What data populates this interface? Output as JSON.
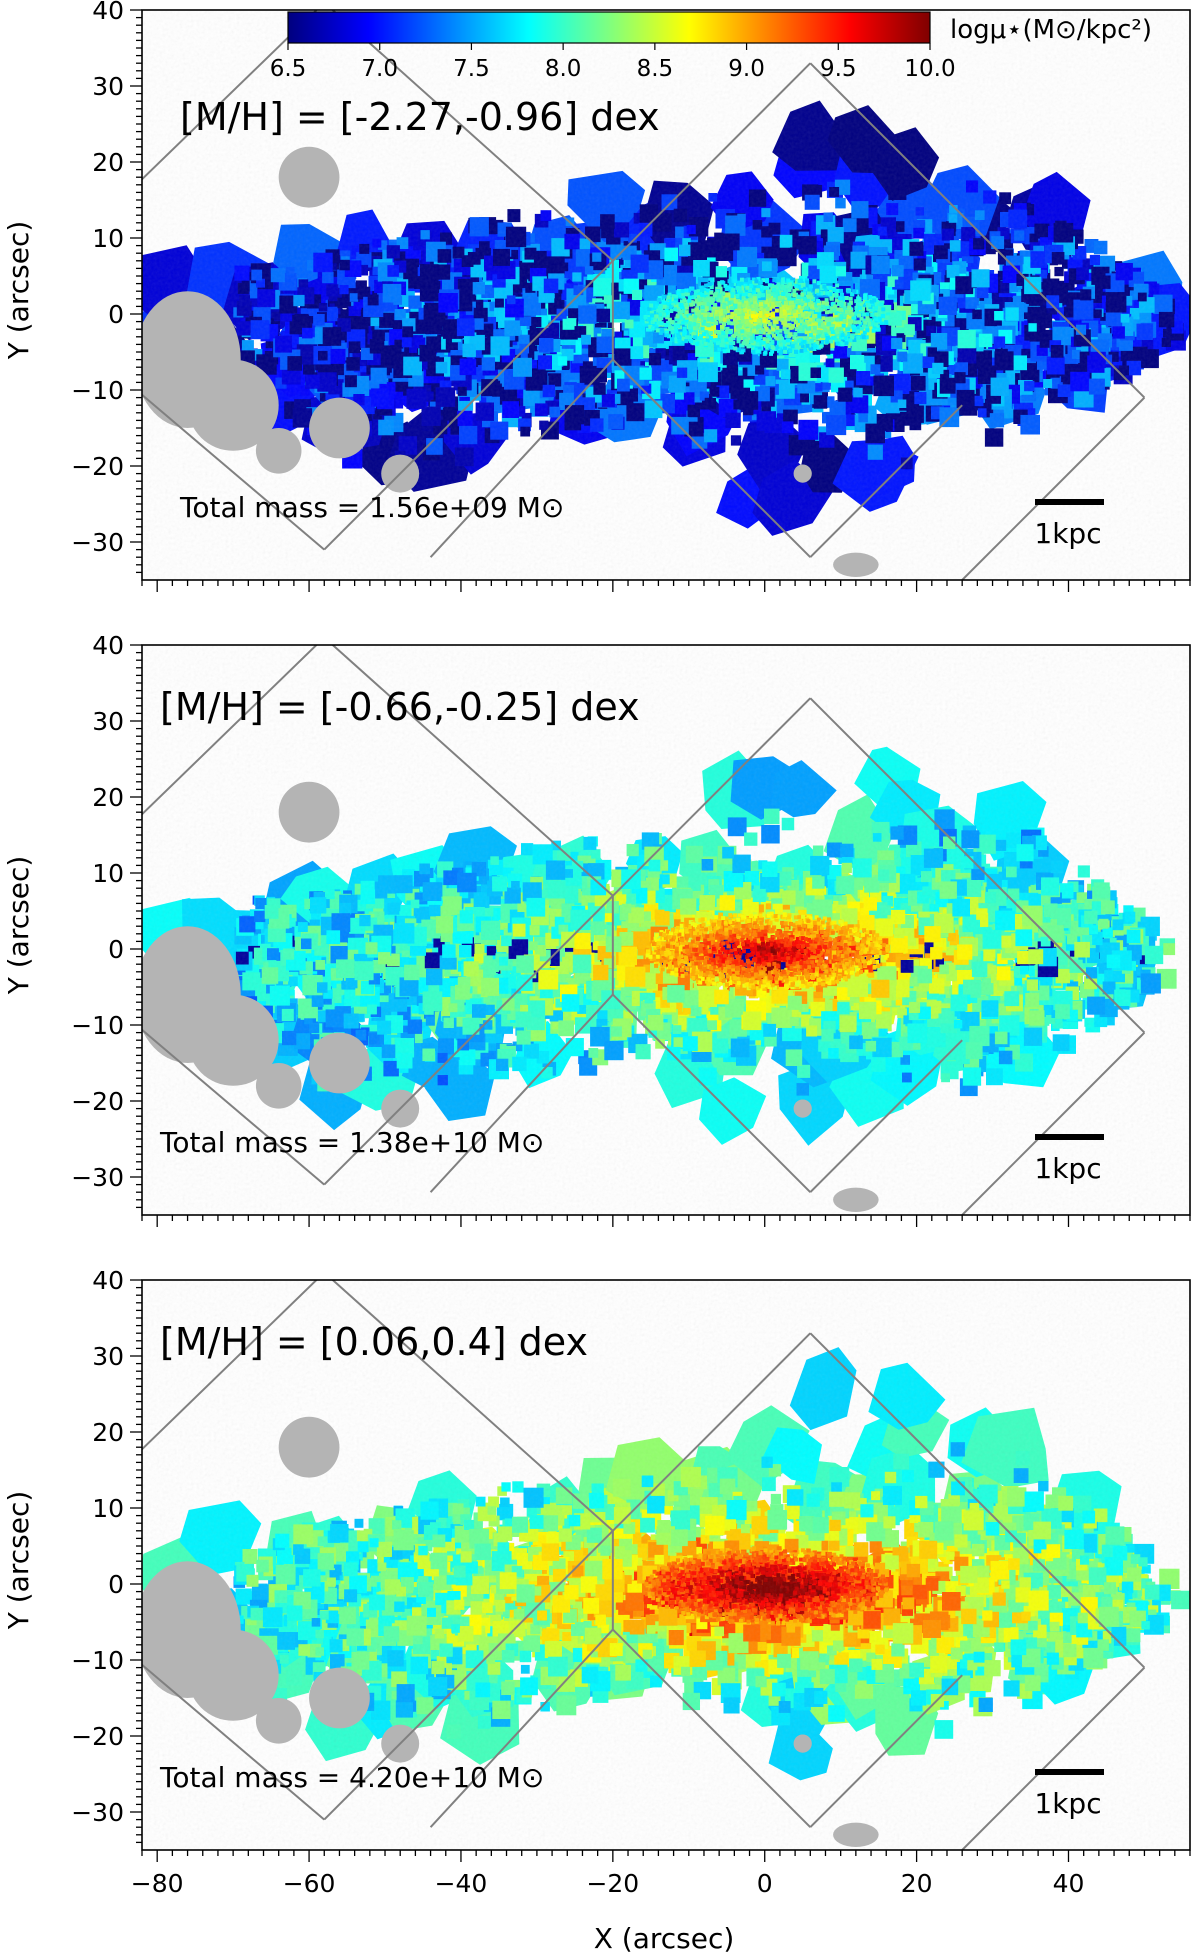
{
  "figure": {
    "xlabel": "X (arcsec)",
    "ylabel": "Y (arcsec)",
    "colorbar": {
      "label": "logμ⋆(M⊙/kpc²)",
      "ticks": [
        "6.5",
        "7.0",
        "7.5",
        "8.0",
        "8.5",
        "9.0",
        "9.5",
        "10.0"
      ],
      "range": [
        6.5,
        10.0
      ],
      "colormap": [
        "#00007f",
        "#0000ff",
        "#007fff",
        "#00ffff",
        "#7fff7f",
        "#ffff00",
        "#ff7f00",
        "#ff0000",
        "#7f0000"
      ]
    },
    "scalebar_label": "1kpc",
    "colors": {
      "footprint": "#808080",
      "masked": "#b4b4b4",
      "axes": "#000000"
    }
  },
  "chart_data": [
    {
      "type": "heatmap",
      "title": "[M/H] = [-2.27,-0.96] dex",
      "annotation": "Total mass = 1.56e+09 M⊙",
      "metallicity_bin_dex": [
        -2.27,
        -0.96
      ],
      "total_mass_msun": 1560000000.0,
      "peak_log_mu": 8.6,
      "outer_log_mu": 6.9,
      "xlim": [
        -82,
        56
      ],
      "ylim": [
        -35,
        40
      ],
      "xticks": [
        -80,
        -60,
        -40,
        -20,
        0,
        20,
        40
      ],
      "yticks": [
        40,
        30,
        20,
        10,
        0,
        -10,
        -20,
        -30
      ],
      "show_xtick_labels": false
    },
    {
      "type": "heatmap",
      "title": "[M/H] = [-0.66,-0.25] dex",
      "annotation": "Total mass = 1.38e+10 M⊙",
      "metallicity_bin_dex": [
        -0.66,
        -0.25
      ],
      "total_mass_msun": 13800000000.0,
      "peak_log_mu": 9.9,
      "outer_log_mu": 7.5,
      "xlim": [
        -82,
        56
      ],
      "ylim": [
        -35,
        40
      ],
      "xticks": [
        -80,
        -60,
        -40,
        -20,
        0,
        20,
        40
      ],
      "yticks": [
        40,
        30,
        20,
        10,
        0,
        -10,
        -20,
        -30
      ],
      "show_xtick_labels": false
    },
    {
      "type": "heatmap",
      "title": "[M/H] = [0.06,0.4] dex",
      "annotation": "Total mass = 4.20e+10 M⊙",
      "metallicity_bin_dex": [
        0.06,
        0.4
      ],
      "total_mass_msun": 42000000000.0,
      "peak_log_mu": 10.3,
      "outer_log_mu": 7.7,
      "xlim": [
        -82,
        56
      ],
      "ylim": [
        -35,
        40
      ],
      "xticks": [
        -80,
        -60,
        -40,
        -20,
        0,
        20,
        40
      ],
      "yticks": [
        40,
        30,
        20,
        10,
        0,
        -10,
        -20,
        -30
      ],
      "show_xtick_labels": true
    }
  ]
}
